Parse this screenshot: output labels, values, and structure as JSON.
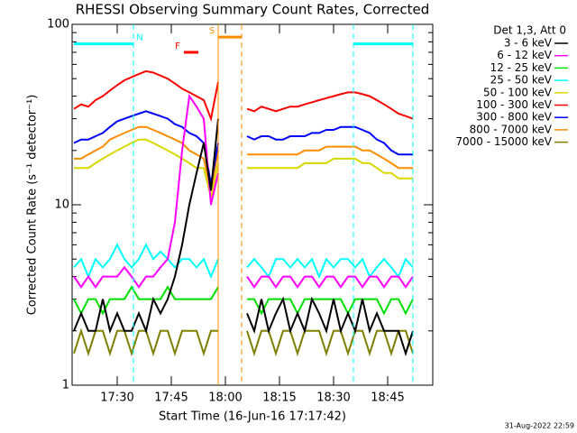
{
  "chart_data": {
    "type": "line",
    "title": "RHESSI Observing Summary Count Rates, Corrected",
    "y_label": "Corrected Count Rate (s⁻¹ detector⁻¹)",
    "x_label": "Start Time (16-Jun-16 17:17:42)",
    "footer": "31-Aug-2022 22:59",
    "legend_title": "Det 1,3, Att 0",
    "log_y": true,
    "ylim": [
      1,
      100
    ],
    "yticks": [
      1,
      10,
      100
    ],
    "minor_yticks": [
      2,
      3,
      4,
      5,
      6,
      7,
      8,
      9,
      20,
      30,
      40,
      50,
      60,
      70,
      80,
      90
    ],
    "xlim": [
      "17:17:30",
      "18:57:30"
    ],
    "xticks": [
      "17:30",
      "17:45",
      "18:00",
      "18:15",
      "18:30",
      "18:45"
    ],
    "x": [
      "17:18",
      "17:20",
      "17:22",
      "17:24",
      "17:26",
      "17:28",
      "17:30",
      "17:32",
      "17:34",
      "17:36",
      "17:38",
      "17:40",
      "17:42",
      "17:44",
      "17:46",
      "17:48",
      "17:50",
      "17:52",
      "17:54",
      "17:56",
      "17:58",
      "18:02",
      "18:06",
      "18:08",
      "18:10",
      "18:12",
      "18:14",
      "18:16",
      "18:18",
      "18:20",
      "18:22",
      "18:24",
      "18:26",
      "18:28",
      "18:30",
      "18:32",
      "18:34",
      "18:36",
      "18:38",
      "18:40",
      "18:42",
      "18:44",
      "18:46",
      "18:48",
      "18:50",
      "18:52"
    ],
    "series": [
      {
        "name": "3 - 6 keV",
        "color": "#000000",
        "values": [
          2,
          2.5,
          2,
          2,
          3,
          2,
          2.5,
          2,
          2,
          2.5,
          2,
          3,
          2.5,
          3,
          4,
          6,
          10,
          15,
          22,
          12,
          30,
          null,
          2.5,
          2,
          3,
          2,
          2.5,
          3,
          2,
          2.5,
          2,
          3,
          2.5,
          2,
          3,
          2,
          2.5,
          2,
          3,
          2,
          2.5,
          2,
          2,
          2,
          1.5,
          2
        ]
      },
      {
        "name": "6 - 12 keV",
        "color": "#ff00ff",
        "values": [
          4,
          3.5,
          4,
          3.5,
          4,
          4,
          4,
          4.5,
          4,
          3.5,
          4,
          4,
          4.5,
          5,
          8,
          20,
          40,
          35,
          30,
          10,
          15,
          null,
          4,
          3.5,
          4,
          4,
          3.5,
          4,
          4,
          3.5,
          4,
          4,
          3.5,
          4,
          4,
          3.5,
          4,
          4,
          3.5,
          4,
          4,
          3.5,
          4,
          4,
          3.5,
          4
        ]
      },
      {
        "name": "12 - 25 keV",
        "color": "#00e000",
        "values": [
          3,
          2.5,
          3,
          3,
          2.5,
          3,
          3,
          3,
          3.5,
          3,
          3,
          3,
          3,
          3.5,
          3,
          3,
          3,
          3,
          3,
          3,
          3.5,
          null,
          3,
          3,
          2.5,
          3,
          3,
          3,
          3,
          2.5,
          3,
          3,
          3,
          3,
          3,
          3,
          2.5,
          3,
          3,
          3,
          3,
          2.5,
          3,
          3,
          2.5,
          3
        ]
      },
      {
        "name": "25 - 50 keV",
        "color": "#00ffff",
        "values": [
          4.5,
          5,
          4,
          5,
          4.5,
          5,
          6,
          5,
          4.5,
          5,
          6,
          5,
          5.5,
          5,
          4.5,
          5,
          5,
          4.5,
          5,
          4,
          5,
          null,
          4.5,
          5,
          4.5,
          4,
          5,
          5,
          4.5,
          5,
          4.5,
          5,
          4,
          5,
          4.5,
          5,
          5,
          4.5,
          5,
          4,
          4.5,
          5,
          4.5,
          4,
          5,
          4.5
        ]
      },
      {
        "name": "50 - 100 keV",
        "color": "#d8d800",
        "values": [
          16,
          16,
          16,
          17,
          18,
          19,
          20,
          21,
          22,
          23,
          23,
          22,
          21,
          20,
          19,
          18,
          17,
          16,
          16,
          11,
          17,
          null,
          16,
          16,
          16,
          16,
          16,
          16,
          16,
          16,
          17,
          17,
          17,
          17,
          18,
          18,
          18,
          18,
          17,
          17,
          16,
          15,
          15,
          14,
          14,
          14
        ]
      },
      {
        "name": "100 - 300 keV",
        "color": "#ff0000",
        "values": [
          34,
          36,
          35,
          38,
          40,
          43,
          46,
          49,
          51,
          53,
          55,
          54,
          52,
          50,
          47,
          44,
          42,
          40,
          38,
          30,
          48,
          null,
          34,
          33,
          35,
          34,
          33,
          34,
          35,
          35,
          36,
          37,
          38,
          39,
          40,
          41,
          42,
          42,
          41,
          40,
          38,
          36,
          34,
          32,
          31,
          30
        ]
      },
      {
        "name": "300 - 800 keV",
        "color": "#0000ff",
        "values": [
          22,
          23,
          23,
          24,
          25,
          27,
          29,
          30,
          31,
          32,
          33,
          32,
          31,
          30,
          28,
          27,
          25,
          24,
          22,
          13,
          22,
          null,
          24,
          23,
          24,
          24,
          23,
          23,
          24,
          24,
          24,
          25,
          25,
          26,
          26,
          27,
          27,
          27,
          26,
          25,
          23,
          22,
          20,
          19,
          19,
          19
        ]
      },
      {
        "name": "800 - 7000 keV",
        "color": "#ff8c00",
        "values": [
          18,
          18,
          19,
          20,
          21,
          23,
          24,
          25,
          26,
          27,
          27,
          26,
          25,
          24,
          23,
          22,
          20,
          19,
          18,
          12,
          20,
          null,
          19,
          19,
          19,
          19,
          19,
          19,
          19,
          19,
          20,
          20,
          20,
          21,
          21,
          21,
          21,
          21,
          20,
          20,
          19,
          18,
          17,
          16,
          16,
          16
        ]
      },
      {
        "name": "7000 - 15000 keV",
        "color": "#808000",
        "values": [
          1.5,
          2,
          1.5,
          2,
          2,
          1.5,
          2,
          2,
          1.5,
          2,
          2,
          1.5,
          2,
          2,
          1.5,
          2,
          2,
          2,
          1.5,
          2,
          2,
          null,
          2,
          1.5,
          2,
          2,
          1.5,
          2,
          2,
          1.5,
          2,
          2,
          2,
          1.5,
          2,
          2,
          1.5,
          2,
          2,
          1.5,
          2,
          2,
          1.5,
          2,
          2,
          1.5
        ]
      }
    ],
    "flags": [
      {
        "label": "N",
        "color": "#00ffff",
        "start": "17:17:42",
        "end": "17:34:30",
        "level": 78
      },
      {
        "color": "#00ffff",
        "start": "18:35:30",
        "end": "18:52:00",
        "level": 78
      },
      {
        "label": "S",
        "color": "#ff8c00",
        "start": "17:58:00",
        "end": "18:04:30",
        "level": 85
      },
      {
        "label": "F",
        "color": "#ff0000",
        "start": "17:48:30",
        "end": "17:52:30",
        "level": 70
      }
    ],
    "flag_lines": [
      {
        "time": "17:34:30",
        "color": "#00ffff",
        "style": "dashed"
      },
      {
        "time": "18:35:30",
        "color": "#00ffff",
        "style": "dashed"
      },
      {
        "time": "18:52:00",
        "color": "#00ffff",
        "style": "dashed"
      },
      {
        "time": "17:58:00",
        "color": "#ff8c00",
        "style": "solid"
      },
      {
        "time": "18:04:30",
        "color": "#ff8c00",
        "style": "dashed"
      }
    ]
  }
}
